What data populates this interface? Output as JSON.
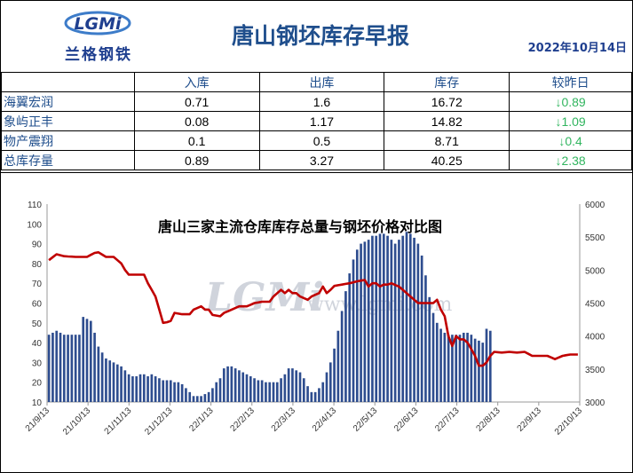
{
  "header": {
    "title": "唐山钢坯库存早报",
    "date": "2022年10月14日",
    "logo_badge": "LGMi",
    "logo_text": "兰格钢铁"
  },
  "table": {
    "headers": [
      "",
      "入库",
      "出库",
      "库存",
      "较昨日"
    ],
    "rows": [
      {
        "name": "海翼宏润",
        "in": "0.71",
        "out": "1.6",
        "stock": "16.72",
        "change": "↓0.89"
      },
      {
        "name": "象屿正丰",
        "in": "0.08",
        "out": "1.17",
        "stock": "14.82",
        "change": "↓1.09"
      },
      {
        "name": "物产震翔",
        "in": "0.1",
        "out": "0.5",
        "stock": "8.71",
        "change": "↓0.4"
      },
      {
        "name": "总库存量",
        "in": "0.89",
        "out": "3.27",
        "stock": "40.25",
        "change": "↓2.38"
      }
    ]
  },
  "colors": {
    "bar": "#2e4d8f",
    "line": "#c00000",
    "title": "#1f4e8c",
    "change": "#31b55f"
  },
  "chart_data": {
    "type": "bar+line",
    "title": "唐山三家主流仓库库存总量与钢坯价格对比图",
    "watermark": "www.lgmi.com",
    "x_ticks": [
      "21/9/13",
      "21/10/13",
      "21/11/13",
      "21/12/13",
      "22/1/13",
      "22/2/13",
      "22/3/13",
      "22/4/13",
      "22/5/13",
      "22/6/13",
      "22/7/13",
      "22/8/13",
      "22/9/13",
      "22/10/13"
    ],
    "ylim_left": [
      10,
      110
    ],
    "yticks_left": [
      10,
      20,
      30,
      40,
      50,
      60,
      70,
      80,
      90,
      100,
      110
    ],
    "ylim_right": [
      3000,
      6000
    ],
    "yticks_right": [
      3000,
      3500,
      4000,
      4500,
      5000,
      5500,
      6000
    ],
    "series": [
      {
        "axis": "left",
        "kind": "bar",
        "anchors": [
          [
            0,
            44
          ],
          [
            1,
            45
          ],
          [
            2,
            46
          ],
          [
            3,
            45
          ],
          [
            4,
            44
          ],
          [
            5,
            44
          ],
          [
            6,
            44
          ],
          [
            7,
            44
          ],
          [
            8,
            44
          ],
          [
            9,
            53
          ],
          [
            10,
            52
          ],
          [
            11,
            51
          ],
          [
            12,
            45
          ],
          [
            13,
            38
          ],
          [
            14,
            35
          ],
          [
            15,
            32
          ],
          [
            16,
            31
          ],
          [
            17,
            30
          ],
          [
            18,
            29
          ],
          [
            19,
            28
          ],
          [
            20,
            26
          ],
          [
            21,
            24
          ],
          [
            22,
            23
          ],
          [
            23,
            23
          ],
          [
            24,
            24
          ],
          [
            25,
            24
          ],
          [
            26,
            23
          ],
          [
            27,
            24
          ],
          [
            28,
            23
          ],
          [
            29,
            22
          ],
          [
            30,
            21
          ],
          [
            31,
            21
          ],
          [
            32,
            21
          ],
          [
            33,
            20
          ],
          [
            34,
            20
          ],
          [
            35,
            19
          ],
          [
            36,
            17
          ],
          [
            37,
            15
          ],
          [
            38,
            13
          ],
          [
            39,
            13
          ],
          [
            40,
            13
          ],
          [
            41,
            14
          ],
          [
            42,
            15
          ],
          [
            43,
            17
          ],
          [
            44,
            20
          ],
          [
            45,
            22
          ],
          [
            46,
            27
          ],
          [
            47,
            28
          ],
          [
            48,
            28
          ],
          [
            49,
            27
          ],
          [
            50,
            26
          ],
          [
            51,
            25
          ],
          [
            52,
            24
          ],
          [
            53,
            23
          ],
          [
            54,
            22
          ],
          [
            55,
            21
          ],
          [
            56,
            21
          ],
          [
            57,
            20
          ],
          [
            58,
            20
          ],
          [
            59,
            20
          ],
          [
            60,
            20
          ],
          [
            61,
            22
          ],
          [
            62,
            24
          ],
          [
            63,
            27
          ],
          [
            64,
            27
          ],
          [
            65,
            26
          ],
          [
            66,
            25
          ],
          [
            67,
            22
          ],
          [
            68,
            18
          ],
          [
            69,
            15
          ],
          [
            70,
            15
          ],
          [
            71,
            17
          ],
          [
            72,
            20
          ],
          [
            73,
            25
          ],
          [
            74,
            30
          ],
          [
            75,
            37
          ],
          [
            76,
            46
          ],
          [
            77,
            56
          ],
          [
            78,
            66
          ],
          [
            79,
            75
          ],
          [
            80,
            82
          ],
          [
            81,
            87
          ],
          [
            82,
            90
          ],
          [
            83,
            91
          ],
          [
            84,
            92
          ],
          [
            85,
            94
          ],
          [
            86,
            94
          ],
          [
            87,
            95
          ],
          [
            88,
            95
          ],
          [
            89,
            94
          ],
          [
            90,
            92
          ],
          [
            91,
            90
          ],
          [
            92,
            92
          ],
          [
            93,
            94
          ],
          [
            94,
            96
          ],
          [
            95,
            95
          ],
          [
            96,
            93
          ],
          [
            97,
            90
          ],
          [
            98,
            84
          ],
          [
            99,
            74
          ],
          [
            100,
            63
          ],
          [
            101,
            55
          ],
          [
            102,
            50
          ],
          [
            103,
            47
          ],
          [
            104,
            45
          ],
          [
            105,
            44
          ],
          [
            106,
            44
          ],
          [
            107,
            44
          ],
          [
            108,
            44
          ],
          [
            109,
            45
          ],
          [
            110,
            45
          ],
          [
            111,
            44
          ],
          [
            112,
            42
          ],
          [
            113,
            41
          ],
          [
            114,
            40
          ],
          [
            115,
            47
          ],
          [
            116,
            46
          ]
        ]
      },
      {
        "axis": "right",
        "kind": "line",
        "anchors": [
          [
            0,
            5150
          ],
          [
            2,
            5240
          ],
          [
            4,
            5210
          ],
          [
            7,
            5200
          ],
          [
            8,
            5200
          ],
          [
            10,
            5200
          ],
          [
            12,
            5260
          ],
          [
            13,
            5270
          ],
          [
            15,
            5200
          ],
          [
            17,
            5200
          ],
          [
            19,
            5100
          ],
          [
            20,
            5000
          ],
          [
            21,
            4930
          ],
          [
            23,
            4930
          ],
          [
            25,
            4930
          ],
          [
            26,
            4800
          ],
          [
            28,
            4600
          ],
          [
            29,
            4400
          ],
          [
            30,
            4200
          ],
          [
            31,
            4210
          ],
          [
            32,
            4230
          ],
          [
            33,
            4350
          ],
          [
            35,
            4330
          ],
          [
            37,
            4330
          ],
          [
            38,
            4400
          ],
          [
            40,
            4450
          ],
          [
            41,
            4400
          ],
          [
            42,
            4400
          ],
          [
            43,
            4320
          ],
          [
            45,
            4300
          ],
          [
            46,
            4350
          ],
          [
            48,
            4400
          ],
          [
            50,
            4450
          ],
          [
            52,
            4450
          ],
          [
            54,
            4500
          ],
          [
            56,
            4520
          ],
          [
            58,
            4520
          ],
          [
            59,
            4600
          ],
          [
            60,
            4650
          ],
          [
            61,
            4700
          ],
          [
            62,
            4650
          ],
          [
            63,
            4700
          ],
          [
            64,
            4650
          ],
          [
            65,
            4650
          ],
          [
            66,
            4600
          ],
          [
            68,
            4550
          ],
          [
            69,
            4600
          ],
          [
            71,
            4650
          ],
          [
            72,
            4750
          ],
          [
            73,
            4650
          ],
          [
            74,
            4700
          ],
          [
            75,
            4760
          ],
          [
            77,
            4780
          ],
          [
            79,
            4800
          ],
          [
            81,
            4830
          ],
          [
            83,
            4850
          ],
          [
            84,
            4750
          ],
          [
            85,
            4800
          ],
          [
            86,
            4800
          ],
          [
            87,
            4750
          ],
          [
            88,
            4780
          ],
          [
            89,
            4780
          ],
          [
            90,
            4800
          ],
          [
            92,
            4750
          ],
          [
            93,
            4700
          ],
          [
            95,
            4600
          ],
          [
            97,
            4500
          ],
          [
            99,
            4500
          ],
          [
            101,
            4500
          ],
          [
            102,
            4550
          ],
          [
            103,
            4400
          ],
          [
            104,
            4300
          ],
          [
            105,
            4000
          ],
          [
            106,
            3850
          ],
          [
            107,
            4000
          ],
          [
            108,
            3950
          ],
          [
            109,
            3950
          ],
          [
            110,
            3900
          ],
          [
            111,
            3800
          ],
          [
            112,
            3700
          ],
          [
            113,
            3550
          ],
          [
            114,
            3550
          ],
          [
            115,
            3600
          ],
          [
            116,
            3700
          ],
          [
            117,
            3760
          ],
          [
            119,
            3750
          ],
          [
            121,
            3760
          ],
          [
            123,
            3750
          ],
          [
            125,
            3760
          ],
          [
            127,
            3700
          ],
          [
            129,
            3700
          ],
          [
            131,
            3700
          ],
          [
            133,
            3650
          ],
          [
            135,
            3700
          ],
          [
            137,
            3720
          ],
          [
            139,
            3720
          ]
        ]
      }
    ]
  }
}
